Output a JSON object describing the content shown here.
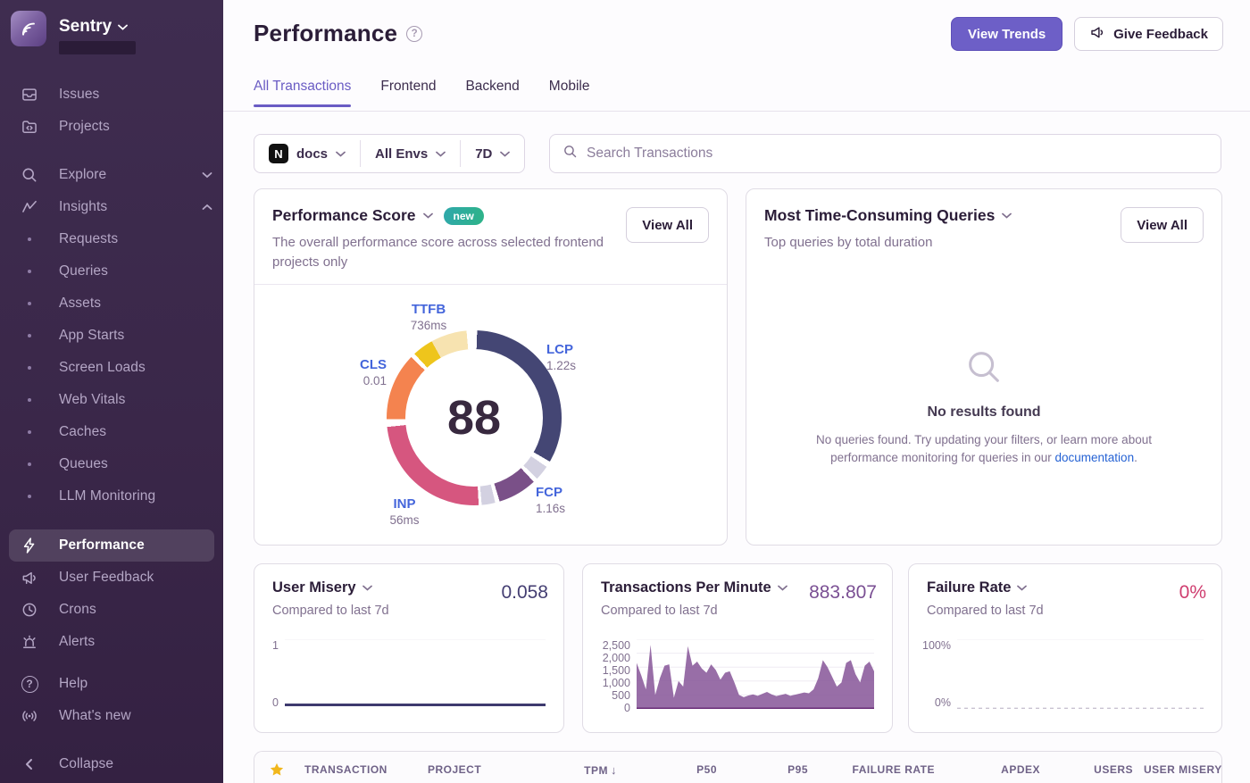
{
  "sidebar": {
    "brand": "Sentry",
    "items": [
      {
        "label": "Issues"
      },
      {
        "label": "Projects"
      },
      {
        "label": "Explore"
      },
      {
        "label": "Insights"
      },
      {
        "label": "Requests"
      },
      {
        "label": "Queries"
      },
      {
        "label": "Assets"
      },
      {
        "label": "App Starts"
      },
      {
        "label": "Screen Loads"
      },
      {
        "label": "Web Vitals"
      },
      {
        "label": "Caches"
      },
      {
        "label": "Queues"
      },
      {
        "label": "LLM Monitoring"
      },
      {
        "label": "Performance"
      },
      {
        "label": "User Feedback"
      },
      {
        "label": "Crons"
      },
      {
        "label": "Alerts"
      },
      {
        "label": "Help"
      },
      {
        "label": "What's new"
      },
      {
        "label": "Collapse"
      }
    ]
  },
  "header": {
    "title": "Performance",
    "view_trends_label": "View Trends",
    "give_feedback_label": "Give Feedback"
  },
  "tabs": {
    "items": [
      {
        "label": "All Transactions"
      },
      {
        "label": "Frontend"
      },
      {
        "label": "Backend"
      },
      {
        "label": "Mobile"
      }
    ]
  },
  "filters": {
    "project_label": "docs",
    "project_logo_letter": "N",
    "env_label": "All Envs",
    "period_label": "7D",
    "search_placeholder": "Search Transactions"
  },
  "icons": {
    "help_glyph": "?",
    "sort_desc_glyph": "↓"
  },
  "panels": {
    "performance_score": {
      "title": "Performance Score",
      "badge": "new",
      "description": "The overall performance score across selected frontend projects only",
      "view_all_label": "View All"
    },
    "queries": {
      "title": "Most Time-Consuming Queries",
      "subtitle": "Top queries by total duration",
      "view_all_label": "View All",
      "empty_title": "No results found",
      "empty_text_before_link": "No queries found. Try updating your filters, or learn more about performance monitoring for queries in our ",
      "empty_link_label": "documentation",
      "empty_text_after_link": "."
    },
    "user_misery": {
      "title": "User Misery",
      "subtitle": "Compared to last 7d",
      "value": "0.058"
    },
    "tpm": {
      "title": "Transactions Per Minute",
      "subtitle": "Compared to last 7d",
      "value": "883.807"
    },
    "failure_rate": {
      "title": "Failure Rate",
      "subtitle": "Compared to last 7d",
      "value": "0%"
    }
  },
  "table": {
    "columns": [
      {
        "label": "TRANSACTION"
      },
      {
        "label": "PROJECT"
      },
      {
        "label": "TPM",
        "sorted": "desc"
      },
      {
        "label": "P50"
      },
      {
        "label": "P95"
      },
      {
        "label": "FAILURE RATE"
      },
      {
        "label": "APDEX"
      },
      {
        "label": "USERS"
      },
      {
        "label": "USER MISERY"
      }
    ]
  },
  "colors": {
    "accent": "#6C5FC7",
    "lcp": "#444674",
    "fcp": "#7A5088",
    "inp": "#D6567F",
    "cls": "#F4834F",
    "ttfb": "#EEC51C",
    "ttfb_light": "#F7E3B0",
    "separator": "#D3D1E1",
    "tpm_fill": "#8A5A9B",
    "misery_line": "#3E3A6E",
    "failure_pink": "#CF3D6F",
    "star": "#F1B71C",
    "link": "#2562D4"
  },
  "chart_data": [
    {
      "type": "donut",
      "title": "Performance Score",
      "score": "88",
      "metrics": [
        {
          "label": "TTFB",
          "value": "736ms"
        },
        {
          "label": "LCP",
          "value": "1.22s"
        },
        {
          "label": "FCP",
          "value": "1.16s"
        },
        {
          "label": "INP",
          "value": "56ms"
        },
        {
          "label": "CLS",
          "value": "0.01"
        }
      ],
      "segments": [
        {
          "name": "LCP",
          "color": "#444674",
          "start": 2,
          "end": 120
        },
        {
          "name": "divider",
          "color": "#D3D1E1",
          "start": 124,
          "end": 134
        },
        {
          "name": "FCP",
          "color": "#7A5088",
          "start": 137,
          "end": 163
        },
        {
          "name": "divider",
          "color": "#D3D1E1",
          "start": 166,
          "end": 175
        },
        {
          "name": "INP",
          "color": "#D6567F",
          "start": 177,
          "end": 264
        },
        {
          "name": "CLS",
          "color": "#F4834F",
          "start": 269,
          "end": 314
        },
        {
          "name": "TTFB",
          "color": "#EEC51C",
          "start": 317,
          "end": 331
        },
        {
          "name": "TTFB-weight",
          "color": "#F7E3B0",
          "start": 331,
          "end": 355
        }
      ]
    },
    {
      "type": "line",
      "title": "User Misery",
      "ylim": [
        0,
        1
      ],
      "yticks": [
        "1",
        "0"
      ],
      "color": "#3E3A6E",
      "line_width": 3,
      "values": [
        0.058,
        0.058,
        0.058,
        0.058,
        0.058,
        0.058,
        0.058,
        0.058,
        0.058,
        0.058,
        0.058,
        0.058
      ]
    },
    {
      "type": "area",
      "title": "Transactions Per Minute",
      "ylim": [
        0,
        2500
      ],
      "yticks": [
        "2,500",
        "2,000",
        "1,500",
        "1,000",
        "500",
        "0"
      ],
      "color": "#8A5A9B",
      "baseline_color": "#6A2D78",
      "values": [
        1650,
        1200,
        700,
        2300,
        500,
        1100,
        1550,
        1600,
        400,
        1000,
        800,
        2250,
        1550,
        1700,
        1450,
        1300,
        1600,
        1400,
        1050,
        1300,
        1350,
        950,
        500,
        420,
        480,
        520,
        470,
        540,
        610,
        520,
        460,
        500,
        540,
        470,
        510,
        550,
        590,
        560,
        700,
        1100,
        1750,
        1500,
        1150,
        800,
        950,
        1650,
        1750,
        1250,
        950,
        1550,
        1700,
        1350
      ]
    },
    {
      "type": "line",
      "title": "Failure Rate",
      "ylim": [
        0,
        100
      ],
      "yticks": [
        "100%",
        "0%"
      ],
      "color": "#C9C2D1",
      "line_width": 1.5,
      "dash": "4 4",
      "values": [
        0,
        0,
        0,
        0,
        0,
        0,
        0,
        0,
        0,
        0,
        0,
        0
      ]
    }
  ]
}
